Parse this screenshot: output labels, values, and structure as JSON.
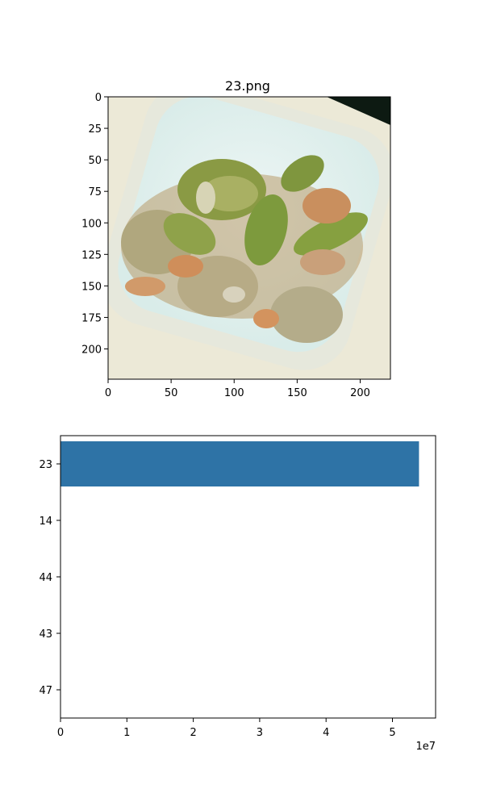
{
  "chart_data": [
    {
      "type": "image",
      "title": "23.png",
      "xlim": [
        0,
        224
      ],
      "ylim": [
        0,
        224
      ],
      "y_inverted": true,
      "xticks": [
        0,
        50,
        100,
        150,
        200
      ],
      "yticks": [
        0,
        25,
        50,
        75,
        100,
        125,
        150,
        175,
        200
      ],
      "image_description": "Photo of a food dish: sliced green vegetables with shrimp in a white tray"
    },
    {
      "type": "bar",
      "orientation": "horizontal",
      "categories": [
        "23",
        "14",
        "44",
        "43",
        "47"
      ],
      "values": [
        54000000,
        0,
        0,
        0,
        0
      ],
      "xlim": [
        0,
        56500000
      ],
      "xticks": [
        0,
        1,
        2,
        3,
        4,
        5
      ],
      "x_offset_text": "1e7",
      "bar_color": "#2e73a6"
    }
  ]
}
